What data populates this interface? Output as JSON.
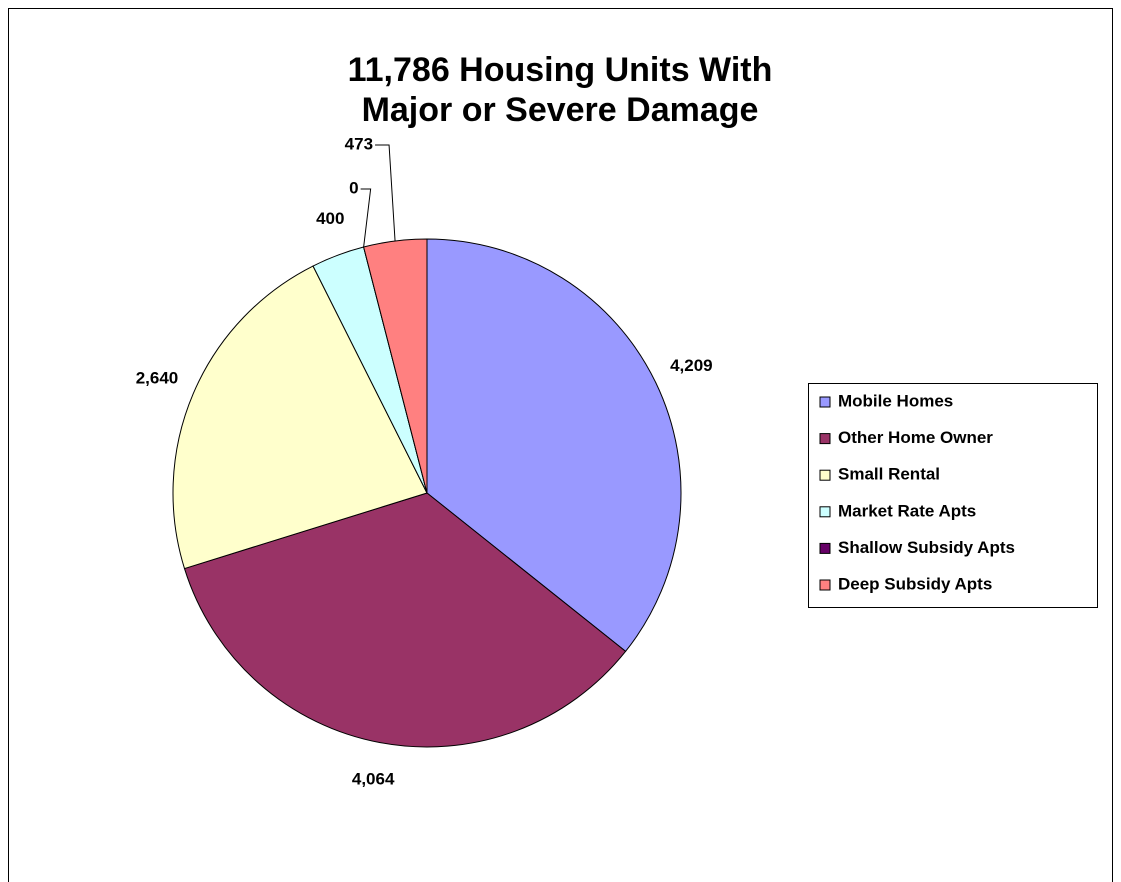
{
  "chart_data": {
    "type": "pie",
    "title": "11,786 Housing Units With Major or Severe Damage",
    "categories": [
      "Mobile Homes",
      "Other Home Owner",
      "Small Rental",
      "Market Rate Apts",
      "Shallow Subsidy Apts",
      "Deep Subsidy Apts"
    ],
    "values": [
      4209,
      4064,
      2640,
      400,
      0,
      473
    ],
    "value_labels": [
      "4,209",
      "4,064",
      "2,640",
      "400",
      "0",
      "473"
    ],
    "colors": [
      "#9999ff",
      "#993366",
      "#ffffcc",
      "#ccffff",
      "#660066",
      "#ff8080"
    ],
    "legend": "right"
  }
}
